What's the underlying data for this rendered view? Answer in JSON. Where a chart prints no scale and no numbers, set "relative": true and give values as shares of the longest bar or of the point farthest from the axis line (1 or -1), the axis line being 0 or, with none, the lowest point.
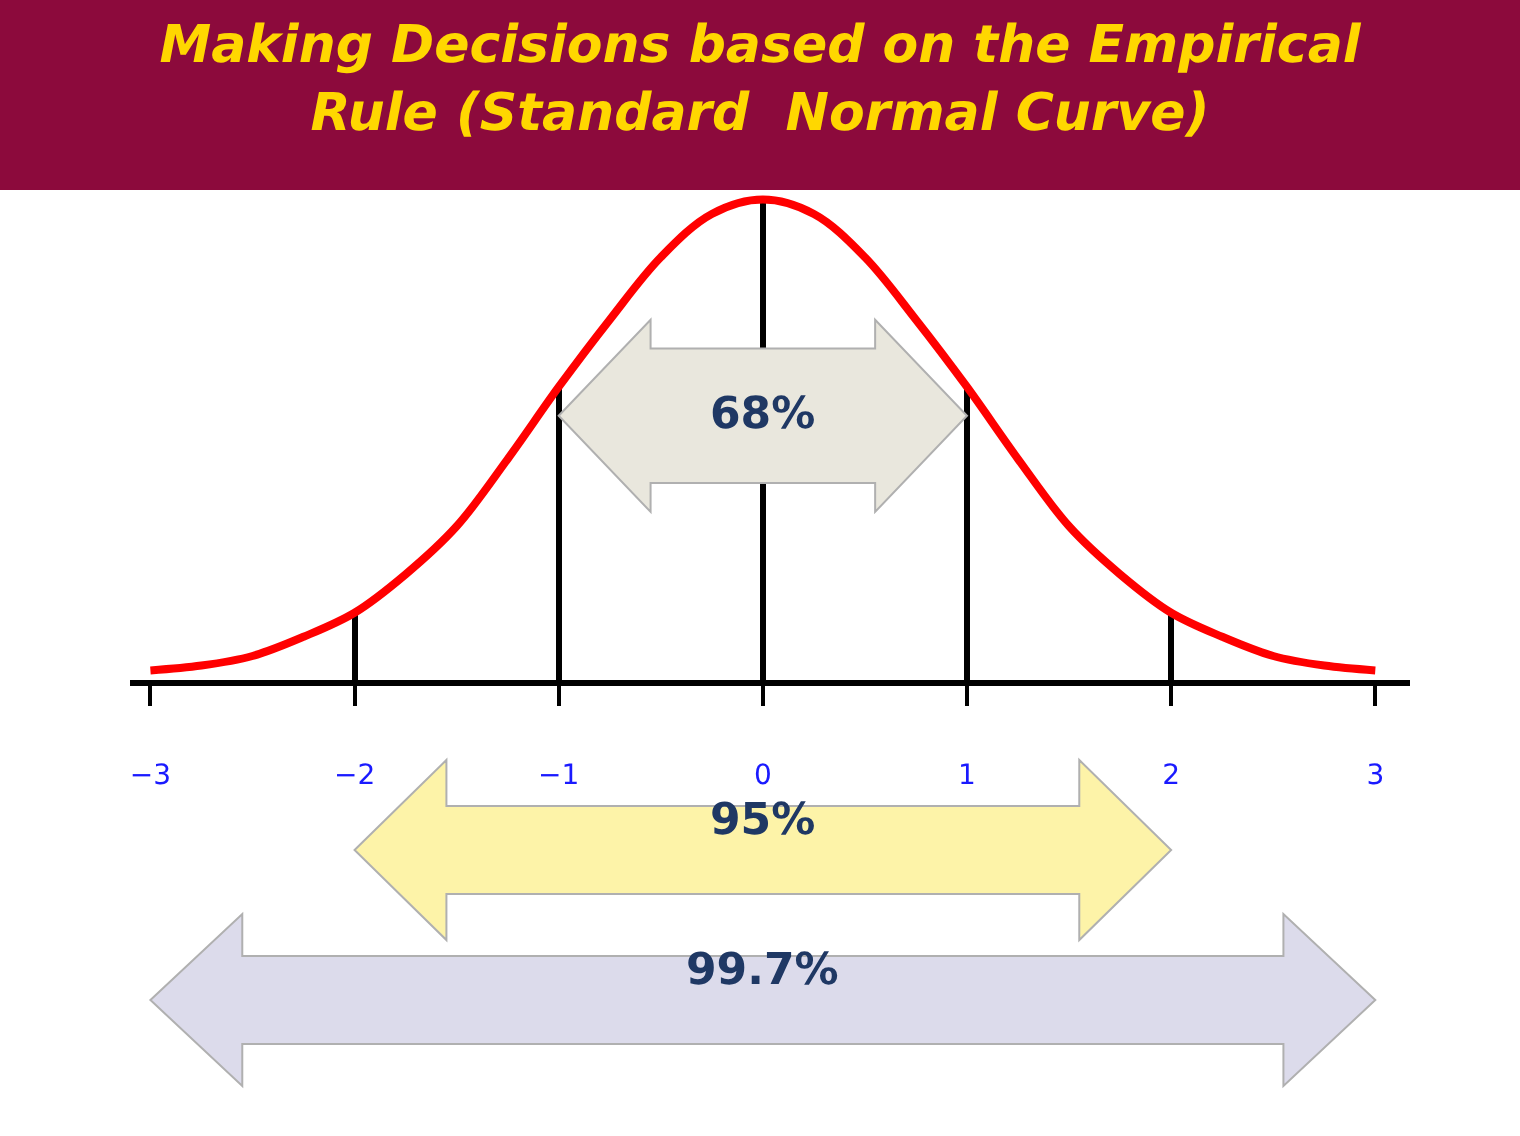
{
  "chart_data": {
    "type": "line",
    "relative": true,
    "title": "Making Decisions based on the Empirical\nRule (Standard  Normal Curve)",
    "xlim": [
      -3.1,
      3.17
    ],
    "xticks": [
      {
        "value": -3,
        "label": "−3"
      },
      {
        "value": -2,
        "label": "−2"
      },
      {
        "value": -1,
        "label": "−1"
      },
      0,
      1,
      2,
      3
    ],
    "series": [
      {
        "color": "#ff0000",
        "x": [
          -3,
          -2.75,
          -2.5,
          -2.25,
          -2,
          -1.75,
          -1.5,
          -1.25,
          -1,
          -0.75,
          -0.5,
          -0.25,
          0,
          0.25,
          0.5,
          0.75,
          1,
          1.25,
          1.5,
          1.75,
          2,
          2.25,
          2.5,
          2.75,
          3
        ],
        "values": [
          0.02,
          0.03,
          0.05,
          0.09,
          0.14,
          0.22,
          0.32,
          0.46,
          0.61,
          0.75,
          0.88,
          0.97,
          1,
          0.97,
          0.88,
          0.75,
          0.61,
          0.46,
          0.32,
          0.22,
          0.14,
          0.09,
          0.05,
          0.03,
          0.02
        ]
      },
      {
        "type": "bar",
        "color": "#000000",
        "x": [
          -2,
          -1,
          0,
          1,
          2
        ],
        "values": [
          0.14,
          0.61,
          1,
          0.61,
          0.14
        ]
      }
    ],
    "annotations": [
      "68%",
      "95%",
      "99.7%"
    ]
  }
}
